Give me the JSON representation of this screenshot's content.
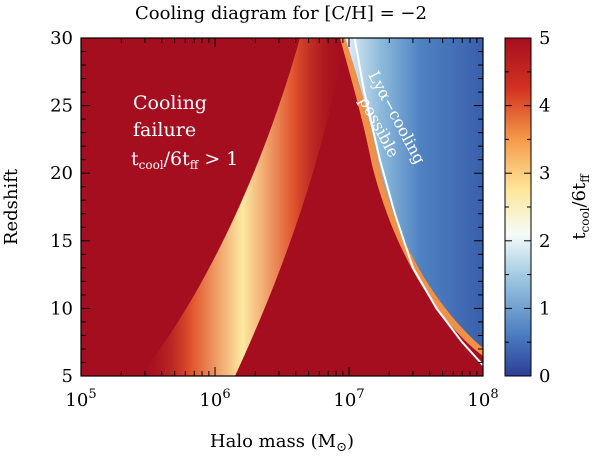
{
  "chart_data": {
    "type": "heatmap",
    "title": "Cooling diagram for [C/H] = −2",
    "xlabel_main": "Halo mass (M",
    "xlabel_sub": "⊙",
    "xlabel_close": ")",
    "ylabel": "Redshift",
    "colorbar_label": {
      "t": "t",
      "sub1": "cool",
      "mid": "/6t",
      "sub2": "ff"
    },
    "x_scale": "log",
    "xlim": [
      100000,
      100000000
    ],
    "ylim": [
      5,
      30
    ],
    "x_ticks": [
      {
        "value": 100000,
        "base": "10",
        "exp": "5"
      },
      {
        "value": 1000000,
        "base": "10",
        "exp": "6"
      },
      {
        "value": 10000000,
        "base": "10",
        "exp": "7"
      },
      {
        "value": 100000000,
        "base": "10",
        "exp": "8"
      }
    ],
    "y_ticks": [
      "5",
      "10",
      "15",
      "20",
      "25",
      "30"
    ],
    "colorbar_range": [
      0,
      5
    ],
    "colorbar_ticks": [
      "0",
      "1",
      "2",
      "3",
      "4",
      "5"
    ],
    "colormap": [
      "#2c3e96",
      "#4a7cc0",
      "#a3cbe3",
      "#f5fbf8",
      "#fee79b",
      "#f59a4a",
      "#d23222",
      "#a50e1f"
    ],
    "background_color": "#a50e1f",
    "boundary_curve": {
      "color": "#ffffff",
      "points": [
        [
          11000000,
          30
        ],
        [
          13000000,
          26
        ],
        [
          17000000,
          21
        ],
        [
          22000000,
          17
        ],
        [
          30000000,
          13
        ],
        [
          45000000,
          10
        ],
        [
          70000000,
          7.5
        ],
        [
          100000000,
          5.8
        ]
      ]
    },
    "annotations": {
      "cooling_failure": {
        "line1": "Cooling",
        "line2": "failure",
        "line3_t": "t",
        "line3_sub1": "cool",
        "line3_mid": "/6t",
        "line3_sub2": "ff",
        "line3_end": " > 1"
      },
      "lya": {
        "line1": "Lyα−cooling",
        "line2": "possible"
      }
    }
  }
}
